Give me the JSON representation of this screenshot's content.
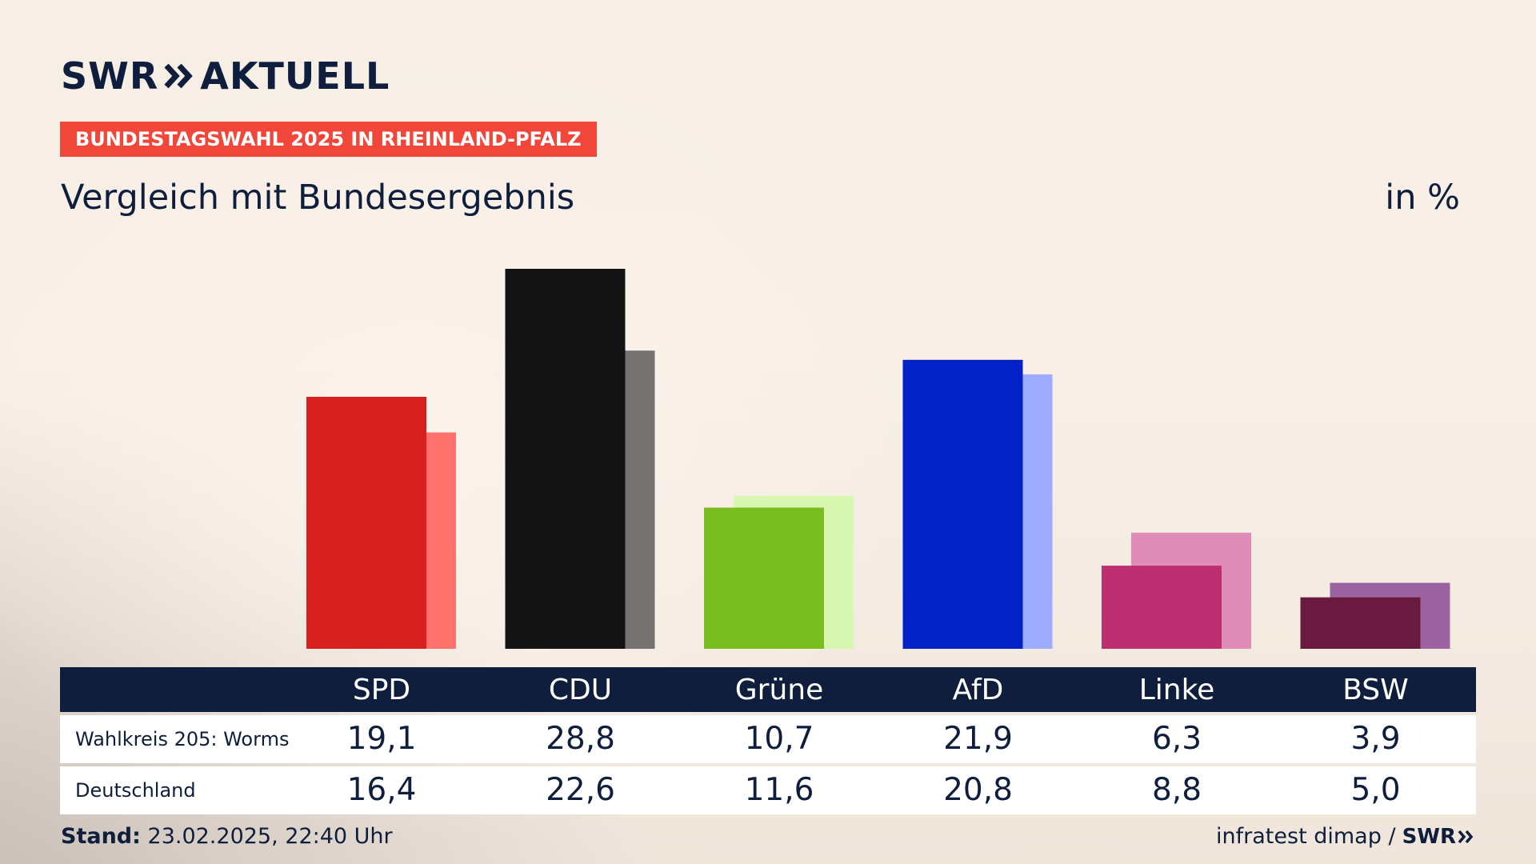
{
  "brand": {
    "logo_text": "SWR",
    "logo_suffix": "AKTUELL",
    "badge": "BUNDESTAGSWAHL 2025 IN RHEINLAND-PFALZ"
  },
  "colors": {
    "badge": "#f0473a",
    "navy": "#0f1e3c"
  },
  "chart_data": {
    "type": "bar",
    "title": "Vergleich mit Bundesergebnis",
    "unit": "in %",
    "categories": [
      "SPD",
      "CDU",
      "Grüne",
      "AfD",
      "Linke",
      "BSW"
    ],
    "series": [
      {
        "name": "Wahlkreis 205: Worms",
        "values": [
          19.1,
          28.8,
          10.7,
          21.9,
          6.3,
          3.9
        ],
        "labels": [
          "19,1",
          "28,8",
          "10,7",
          "21,9",
          "6,3",
          "3,9"
        ],
        "colors": [
          "#d81f1f",
          "#141414",
          "#79bd1e",
          "#0222c8",
          "#be2f72",
          "#6b1a3f"
        ]
      },
      {
        "name": "Deutschland",
        "values": [
          16.4,
          22.6,
          11.6,
          20.8,
          8.8,
          5.0
        ],
        "labels": [
          "16,4",
          "22,6",
          "11,6",
          "20,8",
          "8,8",
          "5,0"
        ],
        "colors": [
          "#ff736c",
          "#757372",
          "#d8f7b0",
          "#9eabff",
          "#e08cb8",
          "#9b64a0"
        ]
      }
    ],
    "ylim": [
      0,
      30
    ],
    "grid": false,
    "legend": "table-below"
  },
  "footer": {
    "stand_label": "Stand:",
    "stand_value": "23.02.2025, 22:40 Uhr",
    "source": "infratest dimap /",
    "source_logo": "SWR"
  }
}
